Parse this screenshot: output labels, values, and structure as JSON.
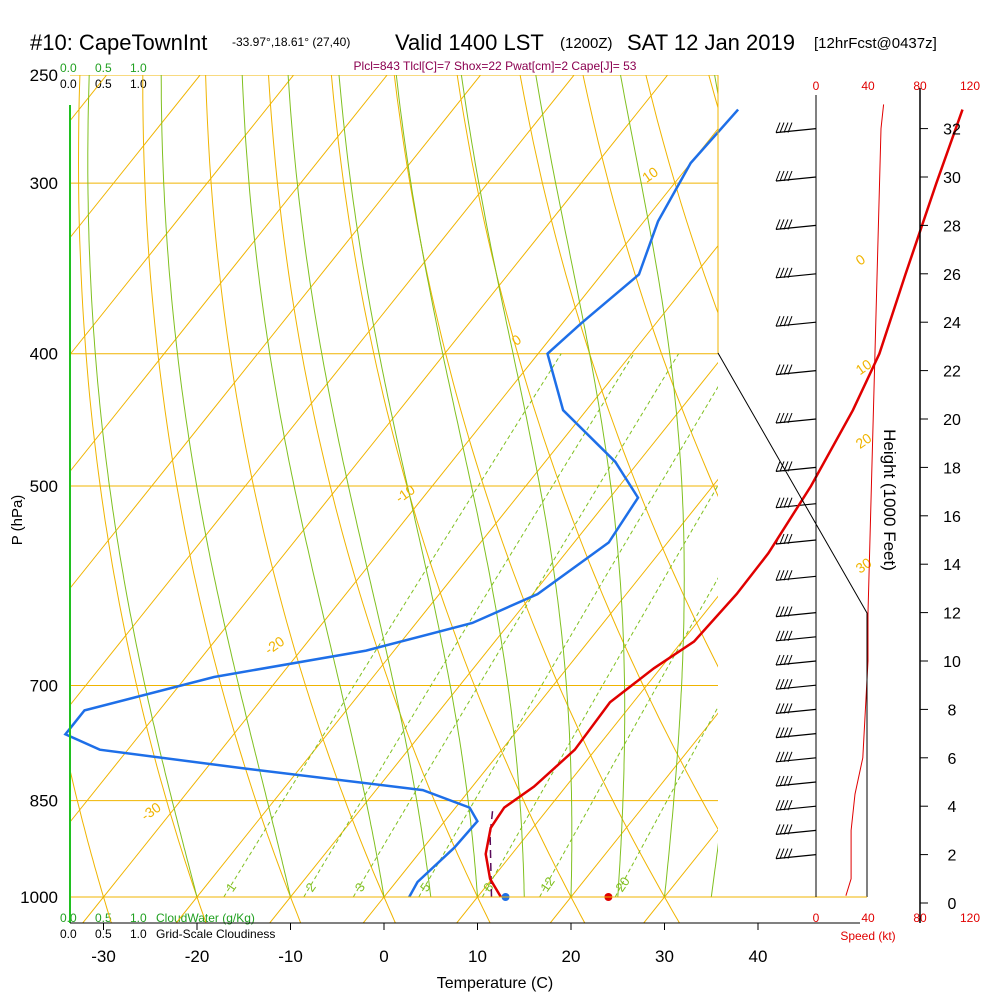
{
  "header": {
    "station": "#10: CapeTownInt",
    "coords": "-33.97°,18.61° (27,40)",
    "valid": "Valid 1400 LST",
    "utc": "(1200Z)",
    "date": "SAT 12 Jan 2019",
    "forecast": "[12hrFcst@0437z]"
  },
  "indices": "Plcl=843 Tlcl[C]=7 Shox=22 Pwat[cm]=2 Cape[J]= 53",
  "scales": {
    "cloudwater_ticks": [
      "0.0",
      "0.5",
      "1.0"
    ],
    "cloudiness_ticks": [
      "0.0",
      "0.5",
      "1.0"
    ],
    "cloudwater_label": "CloudWater (g/Kg)",
    "cloudiness_label": "Grid-Scale Cloudiness",
    "speed_ticks": [
      "0",
      "40",
      "80",
      "120"
    ],
    "speed_label": "Speed (kt)"
  },
  "colors": {
    "isobar": "#f0b400",
    "isotherm": "#f0b400",
    "dry_adiabat": "#f0b400",
    "moist_adiabat": "#80c020",
    "mixing_ratio": "#80c020",
    "temperature": "#e00000",
    "dewpoint": "#1e6fe8",
    "parcel": "#5a0a5a",
    "cloud": "#20a020",
    "indices": "#8b0050",
    "speed": "#e00000"
  },
  "chart_data": {
    "type": "skew-t",
    "xlabel": "Temperature (C)",
    "ylabel": "P (hPa)",
    "y2label": "Height (1000 Feet)",
    "x_ticks": [
      -30,
      -20,
      -10,
      0,
      10,
      20,
      30,
      40
    ],
    "pressure_ticks": [
      250,
      300,
      400,
      500,
      700,
      850,
      1000
    ],
    "height_ticks": [
      0,
      2,
      4,
      6,
      8,
      10,
      12,
      14,
      16,
      18,
      20,
      22,
      24,
      26,
      28,
      30,
      32
    ],
    "dry_adiabat_labels": [
      {
        "text": "10",
        "p": 300,
        "t": -33
      },
      {
        "text": "0",
        "p": 395,
        "t": -33
      },
      {
        "text": "-10",
        "p": 515,
        "t": -32
      },
      {
        "text": "-20",
        "p": 665,
        "t": -33
      },
      {
        "text": "-30",
        "p": 880,
        "t": -32
      },
      {
        "text": "0",
        "p": 345,
        "t": 35
      },
      {
        "text": "10",
        "p": 415,
        "t": 38
      },
      {
        "text": "20",
        "p": 470,
        "t": 42
      },
      {
        "text": "30",
        "p": 580,
        "t": 47
      }
    ],
    "mixing_ratio_labels": [
      "1",
      "2",
      "3",
      "5",
      "8",
      "12",
      "20"
    ],
    "temperature": [
      {
        "p": 265,
        "t": -5.5
      },
      {
        "p": 300,
        "t": -2
      },
      {
        "p": 350,
        "t": 2.5
      },
      {
        "p": 400,
        "t": 6.5
      },
      {
        "p": 440,
        "t": 8.5
      },
      {
        "p": 500,
        "t": 10.5
      },
      {
        "p": 560,
        "t": 11.7
      },
      {
        "p": 600,
        "t": 11.8
      },
      {
        "p": 650,
        "t": 11.3
      },
      {
        "p": 680,
        "t": 9.3
      },
      {
        "p": 720,
        "t": 7.5
      },
      {
        "p": 780,
        "t": 7.8
      },
      {
        "p": 830,
        "t": 6.6
      },
      {
        "p": 860,
        "t": 5.2
      },
      {
        "p": 890,
        "t": 5.5
      },
      {
        "p": 930,
        "t": 7.2
      },
      {
        "p": 970,
        "t": 9.8
      },
      {
        "p": 1000,
        "t": 12.5
      }
    ],
    "dewpoint": [
      {
        "p": 265,
        "t": -29.5
      },
      {
        "p": 290,
        "t": -30
      },
      {
        "p": 320,
        "t": -28.5
      },
      {
        "p": 350,
        "t": -26
      },
      {
        "p": 380,
        "t": -28
      },
      {
        "p": 400,
        "t": -29
      },
      {
        "p": 440,
        "t": -22.5
      },
      {
        "p": 480,
        "t": -12.5
      },
      {
        "p": 510,
        "t": -7
      },
      {
        "p": 550,
        "t": -6.3
      },
      {
        "p": 600,
        "t": -9.5
      },
      {
        "p": 630,
        "t": -14
      },
      {
        "p": 660,
        "t": -23
      },
      {
        "p": 690,
        "t": -37
      },
      {
        "p": 730,
        "t": -48
      },
      {
        "p": 760,
        "t": -48
      },
      {
        "p": 780,
        "t": -43
      },
      {
        "p": 805,
        "t": -26
      },
      {
        "p": 835,
        "t": -5
      },
      {
        "p": 860,
        "t": 1.5
      },
      {
        "p": 880,
        "t": 3.5
      },
      {
        "p": 920,
        "t": 3.3
      },
      {
        "p": 975,
        "t": 2.3
      },
      {
        "p": 1000,
        "t": 2.7
      }
    ],
    "parcel": [
      {
        "p": 1000,
        "t": 11.5
      },
      {
        "p": 900,
        "t": 6.0
      },
      {
        "p": 860,
        "t": 4.0
      }
    ],
    "surface_temperature": 24,
    "surface_dewpoint": 13,
    "wind_speed_profile": [
      {
        "ft": 0.3,
        "kt": 23
      },
      {
        "ft": 1,
        "kt": 27
      },
      {
        "ft": 3,
        "kt": 27
      },
      {
        "ft": 4.5,
        "kt": 30
      },
      {
        "ft": 6,
        "kt": 36
      },
      {
        "ft": 8,
        "kt": 38
      },
      {
        "ft": 10,
        "kt": 40
      },
      {
        "ft": 12,
        "kt": 40
      },
      {
        "ft": 16,
        "kt": 42
      },
      {
        "ft": 20,
        "kt": 44
      },
      {
        "ft": 24,
        "kt": 46
      },
      {
        "ft": 28,
        "kt": 48
      },
      {
        "ft": 32,
        "kt": 50
      },
      {
        "ft": 33,
        "kt": 52
      }
    ],
    "wind_barb_levels_ft": [
      2,
      3,
      4,
      5,
      6,
      7,
      8,
      9,
      10,
      11,
      12,
      13.5,
      15,
      16.5,
      18,
      20,
      22,
      24,
      26,
      28,
      30,
      32
    ]
  }
}
